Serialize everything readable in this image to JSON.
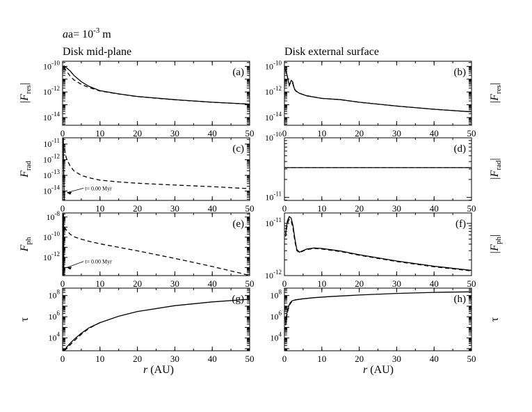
{
  "figure": {
    "size_label": "a= 10",
    "size_exp": "-3",
    "size_unit": " m",
    "col_left_title": "Disk mid-plane",
    "col_right_title": "Disk external surface",
    "xlabel": "r (AU)"
  },
  "chart_data": [
    {
      "id": "a",
      "panel": "(a)",
      "column": "left",
      "row": 0,
      "type": "line",
      "ylabel": "|F",
      "ylabel_sub": "res",
      "ylabel_post": "|",
      "ylog": true,
      "ylim": [
        -14.6,
        -9.6
      ],
      "yticks": [
        {
          "v": -10,
          "t": "10",
          "e": "-10"
        },
        {
          "v": -12,
          "t": "10",
          "e": "-12"
        },
        {
          "v": -14,
          "t": "10",
          "e": "-14"
        }
      ],
      "xlim": [
        0,
        50
      ],
      "xticks": [
        0,
        10,
        20,
        30,
        40,
        50
      ],
      "series": [
        {
          "style": "solid",
          "x": [
            0.3,
            1,
            2,
            3,
            5,
            7,
            10,
            15,
            20,
            30,
            40,
            50
          ],
          "y": [
            -9.95,
            -10.1,
            -10.35,
            -10.7,
            -11.2,
            -11.55,
            -11.9,
            -12.15,
            -12.35,
            -12.6,
            -12.8,
            -12.95
          ]
        },
        {
          "style": "dash",
          "x": [
            0.3,
            1,
            2,
            3,
            5,
            7,
            10,
            15,
            20,
            30,
            40,
            50
          ],
          "y": [
            -10.05,
            -10.35,
            -10.75,
            -11.05,
            -11.4,
            -11.65,
            -11.92,
            -12.16,
            -12.36,
            -12.61,
            -12.8,
            -12.95
          ]
        }
      ]
    },
    {
      "id": "b",
      "panel": "(b)",
      "column": "right",
      "row": 0,
      "type": "line",
      "ylabel": "|F",
      "ylabel_sub": "res",
      "ylabel_post": "|",
      "ylog": true,
      "ylim": [
        -14.6,
        -9.6
      ],
      "yticks": [
        {
          "v": -10,
          "t": "10",
          "e": "-10"
        },
        {
          "v": -12,
          "t": "10",
          "e": "-12"
        },
        {
          "v": -14,
          "t": "10",
          "e": "-14"
        }
      ],
      "xlim": [
        0,
        50
      ],
      "xticks": [
        0,
        10,
        20,
        30,
        40,
        50
      ],
      "series": [
        {
          "style": "solid",
          "x": [
            0.3,
            0.8,
            1.3,
            1.8,
            2.2,
            2.6,
            3,
            4,
            6,
            8,
            10,
            15,
            20,
            30,
            40,
            50
          ],
          "y": [
            -10.2,
            -10.8,
            -11.5,
            -11.1,
            -11.2,
            -11.7,
            -11.9,
            -12.1,
            -12.3,
            -12.4,
            -12.5,
            -12.6,
            -12.8,
            -13.1,
            -13.35,
            -13.55
          ]
        },
        {
          "style": "dash",
          "x": [
            0.3,
            0.8,
            1.3,
            1.8,
            2.2,
            2.6,
            3,
            4,
            6,
            8,
            10,
            15,
            20,
            30,
            40,
            50
          ],
          "y": [
            -10.25,
            -10.85,
            -11.45,
            -11.2,
            -11.3,
            -11.75,
            -11.92,
            -12.1,
            -12.3,
            -12.4,
            -12.5,
            -12.6,
            -12.8,
            -13.1,
            -13.35,
            -13.55
          ]
        }
      ]
    },
    {
      "id": "c",
      "panel": "(c)",
      "column": "left",
      "row": 1,
      "type": "line",
      "ylabel": "F",
      "ylabel_sub": "rad",
      "ylabel_post": "",
      "ylog": true,
      "ylim": [
        -14.6,
        -10.6
      ],
      "yticks": [
        {
          "v": -11,
          "t": "10",
          "e": "-11"
        },
        {
          "v": -12,
          "t": "10",
          "e": "-12"
        },
        {
          "v": -13,
          "t": "10",
          "e": "-13"
        },
        {
          "v": -14,
          "t": "10",
          "e": "-14"
        }
      ],
      "xlim": [
        0,
        50
      ],
      "xticks": [
        0,
        10,
        20,
        30,
        40,
        50
      ],
      "annotation": {
        "text": "t= 0.00 Myr",
        "x": 6,
        "y": -13.95,
        "ax": 0.4,
        "ay": -14.1
      },
      "series": [
        {
          "style": "solid",
          "x": [
            0.2,
            0.3,
            0.45,
            0.6
          ],
          "y": [
            -10.6,
            -12.5,
            -14.6,
            -14.6
          ]
        },
        {
          "style": "dash",
          "x": [
            0.5,
            1,
            2,
            3,
            5,
            7,
            10,
            15,
            20,
            30,
            40,
            50
          ],
          "y": [
            -11.3,
            -11.9,
            -12.4,
            -12.7,
            -13.0,
            -13.15,
            -13.3,
            -13.42,
            -13.5,
            -13.62,
            -13.72,
            -13.85
          ]
        }
      ]
    },
    {
      "id": "d",
      "panel": "(d)",
      "column": "right",
      "row": 1,
      "type": "line",
      "ylabel": "|F",
      "ylabel_sub": "rad",
      "ylabel_post": "|",
      "ylog": true,
      "ylim": [
        -11.05,
        -10.0
      ],
      "yticks": [
        {
          "v": -10,
          "t": "10",
          "e": "-10"
        },
        {
          "v": -11,
          "t": "10",
          "e": "-11"
        }
      ],
      "xlim": [
        0,
        50
      ],
      "xticks": [
        0,
        10,
        20,
        30,
        40,
        50
      ],
      "series": [
        {
          "style": "solid",
          "x": [
            0,
            50
          ],
          "y": [
            -10.5,
            -10.5
          ]
        },
        {
          "style": "dash",
          "x": [
            0,
            50
          ],
          "y": [
            -10.5,
            -10.5
          ]
        }
      ]
    },
    {
      "id": "e",
      "panel": "(e)",
      "column": "left",
      "row": 2,
      "type": "line",
      "ylabel": "F",
      "ylabel_sub": "ph",
      "ylabel_post": "",
      "ylog": true,
      "ylim": [
        -13.8,
        -7.6
      ],
      "yticks": [
        {
          "v": -8,
          "t": "10",
          "e": "-8"
        },
        {
          "v": -10,
          "t": "10",
          "e": "-10"
        },
        {
          "v": -12,
          "t": "10",
          "e": "-12"
        }
      ],
      "xlim": [
        0,
        50
      ],
      "xticks": [
        0,
        10,
        20,
        30,
        40,
        50
      ],
      "annotation": {
        "text": "t= 0.00 Myr",
        "x": 6,
        "y": -12.6,
        "ax": 0.4,
        "ay": -13.0
      },
      "series": [
        {
          "style": "solid",
          "x": [
            0.15,
            0.2,
            0.3,
            0.35,
            0.4
          ],
          "y": [
            -13.8,
            -7.7,
            -8.0,
            -13.8,
            -13.8
          ]
        },
        {
          "style": "dash",
          "x": [
            0.5,
            1,
            2,
            3,
            5,
            7,
            10,
            15,
            20,
            30,
            40,
            48,
            50
          ],
          "y": [
            -9.0,
            -9.3,
            -9.7,
            -9.95,
            -10.2,
            -10.4,
            -10.65,
            -11.0,
            -11.35,
            -12.1,
            -12.9,
            -13.6,
            -13.8
          ]
        }
      ]
    },
    {
      "id": "f",
      "panel": "(f)",
      "column": "right",
      "row": 2,
      "type": "line",
      "ylabel": "|F",
      "ylabel_sub": "ph",
      "ylabel_post": "|",
      "ylog": true,
      "ylim": [
        -12.0,
        -10.8
      ],
      "yticks": [
        {
          "v": -11,
          "t": "10",
          "e": "-11"
        },
        {
          "v": -12,
          "t": "10",
          "e": "-12"
        }
      ],
      "xlim": [
        0,
        50
      ],
      "xticks": [
        0,
        10,
        20,
        30,
        40,
        50
      ],
      "series": [
        {
          "style": "solid",
          "x": [
            0.3,
            0.8,
            1.3,
            1.8,
            2.3,
            2.8,
            3.3,
            4,
            5,
            6,
            8,
            10,
            15,
            20,
            30,
            40,
            50
          ],
          "y": [
            -11.2,
            -10.95,
            -10.87,
            -10.9,
            -11.05,
            -11.3,
            -11.5,
            -11.55,
            -11.52,
            -11.49,
            -11.47,
            -11.48,
            -11.53,
            -11.6,
            -11.72,
            -11.82,
            -11.9
          ]
        },
        {
          "style": "dash",
          "x": [
            0.3,
            0.8,
            1.3,
            1.8,
            2.3,
            2.8,
            3.3,
            4,
            5,
            6,
            8,
            10,
            15,
            20,
            30,
            40,
            50
          ],
          "y": [
            -11.25,
            -11.0,
            -10.92,
            -10.95,
            -11.1,
            -11.35,
            -11.52,
            -11.56,
            -11.53,
            -11.5,
            -11.48,
            -11.49,
            -11.54,
            -11.61,
            -11.73,
            -11.83,
            -11.91
          ]
        }
      ]
    },
    {
      "id": "g",
      "panel": "(g)",
      "column": "left",
      "row": 3,
      "type": "line",
      "ylabel": "τ",
      "ylabel_sub": "",
      "ylabel_post": "",
      "ylog": true,
      "ylim": [
        2.8,
        8.7
      ],
      "yticks": [
        {
          "v": 8,
          "t": "10",
          "e": "8"
        },
        {
          "v": 6,
          "t": "10",
          "e": "6"
        },
        {
          "v": 4,
          "t": "10",
          "e": "4"
        }
      ],
      "xlim": [
        0,
        50
      ],
      "xticks": [
        0,
        10,
        20,
        30,
        40,
        50
      ],
      "series": [
        {
          "style": "solid",
          "x": [
            0.5,
            1,
            2,
            3,
            5,
            7,
            10,
            15,
            20,
            30,
            40,
            50
          ],
          "y": [
            2.8,
            3.1,
            3.5,
            3.85,
            4.45,
            4.95,
            5.45,
            6.05,
            6.5,
            7.05,
            7.4,
            7.65
          ]
        },
        {
          "style": "dash",
          "x": [
            0.5,
            1,
            2,
            3,
            5,
            7,
            10
          ],
          "y": [
            2.8,
            3.0,
            3.35,
            3.7,
            4.35,
            4.9,
            5.45
          ]
        }
      ]
    },
    {
      "id": "h",
      "panel": "(h)",
      "column": "right",
      "row": 3,
      "type": "line",
      "ylabel": "τ",
      "ylabel_sub": "",
      "ylabel_post": "",
      "ylog": true,
      "ylim": [
        2.8,
        8.7
      ],
      "yticks": [
        {
          "v": 8,
          "t": "10",
          "e": "8"
        },
        {
          "v": 6,
          "t": "10",
          "e": "6"
        },
        {
          "v": 4,
          "t": "10",
          "e": "4"
        }
      ],
      "xlim": [
        0,
        50
      ],
      "xticks": [
        0,
        10,
        20,
        30,
        40,
        50
      ],
      "series": [
        {
          "style": "solid",
          "x": [
            0.3,
            0.6,
            1,
            1.5,
            2,
            3,
            5,
            8,
            12,
            20,
            30,
            40,
            50
          ],
          "y": [
            5.5,
            6.2,
            6.9,
            7.3,
            7.5,
            7.6,
            7.7,
            7.8,
            7.9,
            8.05,
            8.2,
            8.3,
            8.35
          ]
        },
        {
          "style": "dash",
          "x": [
            0.3,
            0.6,
            1,
            1.5,
            2,
            3,
            5
          ],
          "y": [
            5.2,
            6.0,
            6.7,
            7.2,
            7.45,
            7.6,
            7.7
          ]
        }
      ]
    }
  ]
}
